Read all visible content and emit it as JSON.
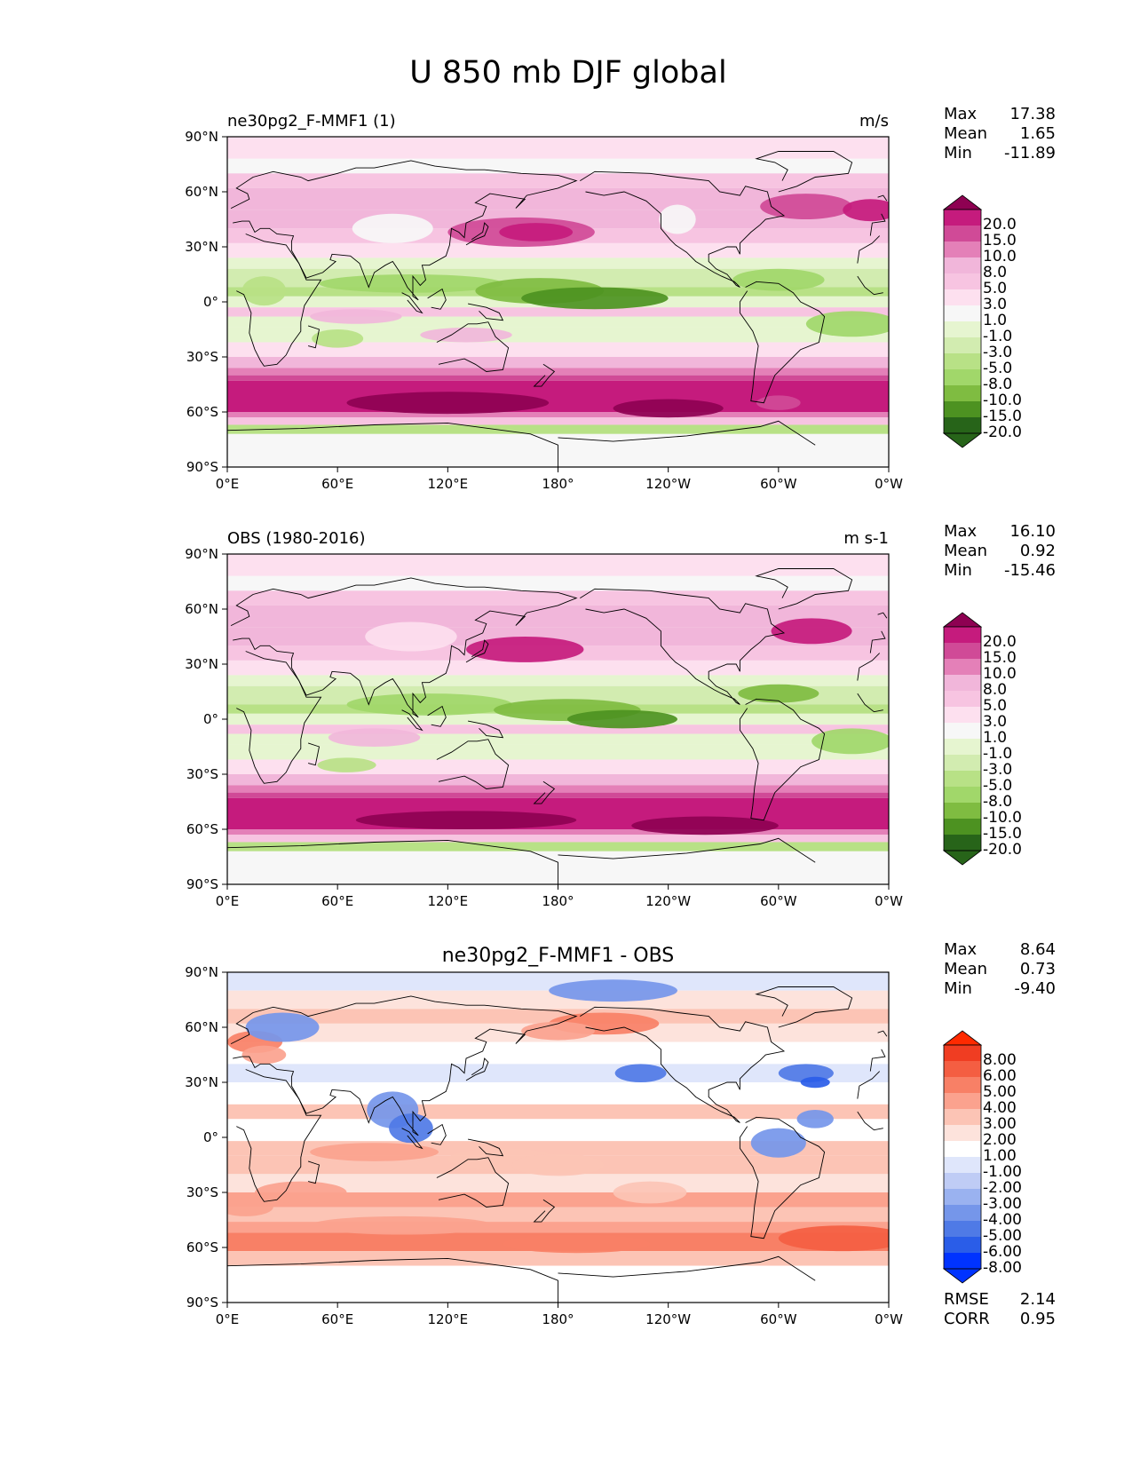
{
  "figure": {
    "title": "U 850 mb DJF global"
  },
  "axes": {
    "lon_ticks": [
      "0°E",
      "60°E",
      "120°E",
      "180°",
      "120°W",
      "60°W",
      "0°W"
    ],
    "lat_ticks": [
      "90°N",
      "60°N",
      "30°N",
      "0°",
      "30°S",
      "60°S",
      "90°S"
    ]
  },
  "panels": [
    {
      "id": "model",
      "title_left": "ne30pg2_F-MMF1 (1)",
      "title_center": "",
      "units": "m/s",
      "stats": [
        {
          "label": "Max",
          "value": "17.38"
        },
        {
          "label": "Mean",
          "value": "1.65"
        },
        {
          "label": "Min",
          "value": "-11.89"
        }
      ],
      "colorbar_labels": [
        "20.0",
        "15.0",
        "10.0",
        "8.0",
        "5.0",
        "3.0",
        "1.0",
        "-1.0",
        "-3.0",
        "-5.0",
        "-8.0",
        "-10.0",
        "-15.0",
        "-20.0"
      ],
      "extra_stats": []
    },
    {
      "id": "obs",
      "title_left": "OBS (1980-2016)",
      "title_center": "",
      "units": "m s-1",
      "stats": [
        {
          "label": "Max",
          "value": "16.10"
        },
        {
          "label": "Mean",
          "value": "0.92"
        },
        {
          "label": "Min",
          "value": "-15.46"
        }
      ],
      "colorbar_labels": [
        "20.0",
        "15.0",
        "10.0",
        "8.0",
        "5.0",
        "3.0",
        "1.0",
        "-1.0",
        "-3.0",
        "-5.0",
        "-8.0",
        "-10.0",
        "-15.0",
        "-20.0"
      ],
      "extra_stats": []
    },
    {
      "id": "diff",
      "title_left": "",
      "title_center": "ne30pg2_F-MMF1 - OBS",
      "units": "",
      "stats": [
        {
          "label": "Max",
          "value": "8.64"
        },
        {
          "label": "Mean",
          "value": "0.73"
        },
        {
          "label": "Min",
          "value": "-9.40"
        }
      ],
      "colorbar_labels": [
        "8.00",
        "6.00",
        "5.00",
        "4.00",
        "3.00",
        "2.00",
        "1.00",
        "-1.00",
        "-2.00",
        "-3.00",
        "-4.00",
        "-5.00",
        "-6.00",
        "-8.00"
      ],
      "extra_stats": [
        {
          "label": "RMSE",
          "value": "2.14"
        },
        {
          "label": "CORR",
          "value": "0.95"
        }
      ]
    }
  ],
  "colors": {
    "diverging_pink_green": [
      "#276419",
      "#4d9221",
      "#7fbc41",
      "#a1d76a",
      "#b8e186",
      "#d2ecb0",
      "#e6f5d0",
      "#f7f7f7",
      "#fde0ef",
      "#f7c4e1",
      "#f1b6da",
      "#e480b8",
      "#d04a97",
      "#c51b7d",
      "#8e0152"
    ],
    "diverging_blue_red": [
      "#0033ff",
      "#2a5de8",
      "#4f7ae6",
      "#7596ea",
      "#9ab2f0",
      "#bfccf5",
      "#dfe6fb",
      "#ffffff",
      "#fde3dc",
      "#fcc4b5",
      "#fba28e",
      "#f88066",
      "#f45e42",
      "#f03d22",
      "#ff2a00"
    ],
    "coastline": "#000000"
  }
}
